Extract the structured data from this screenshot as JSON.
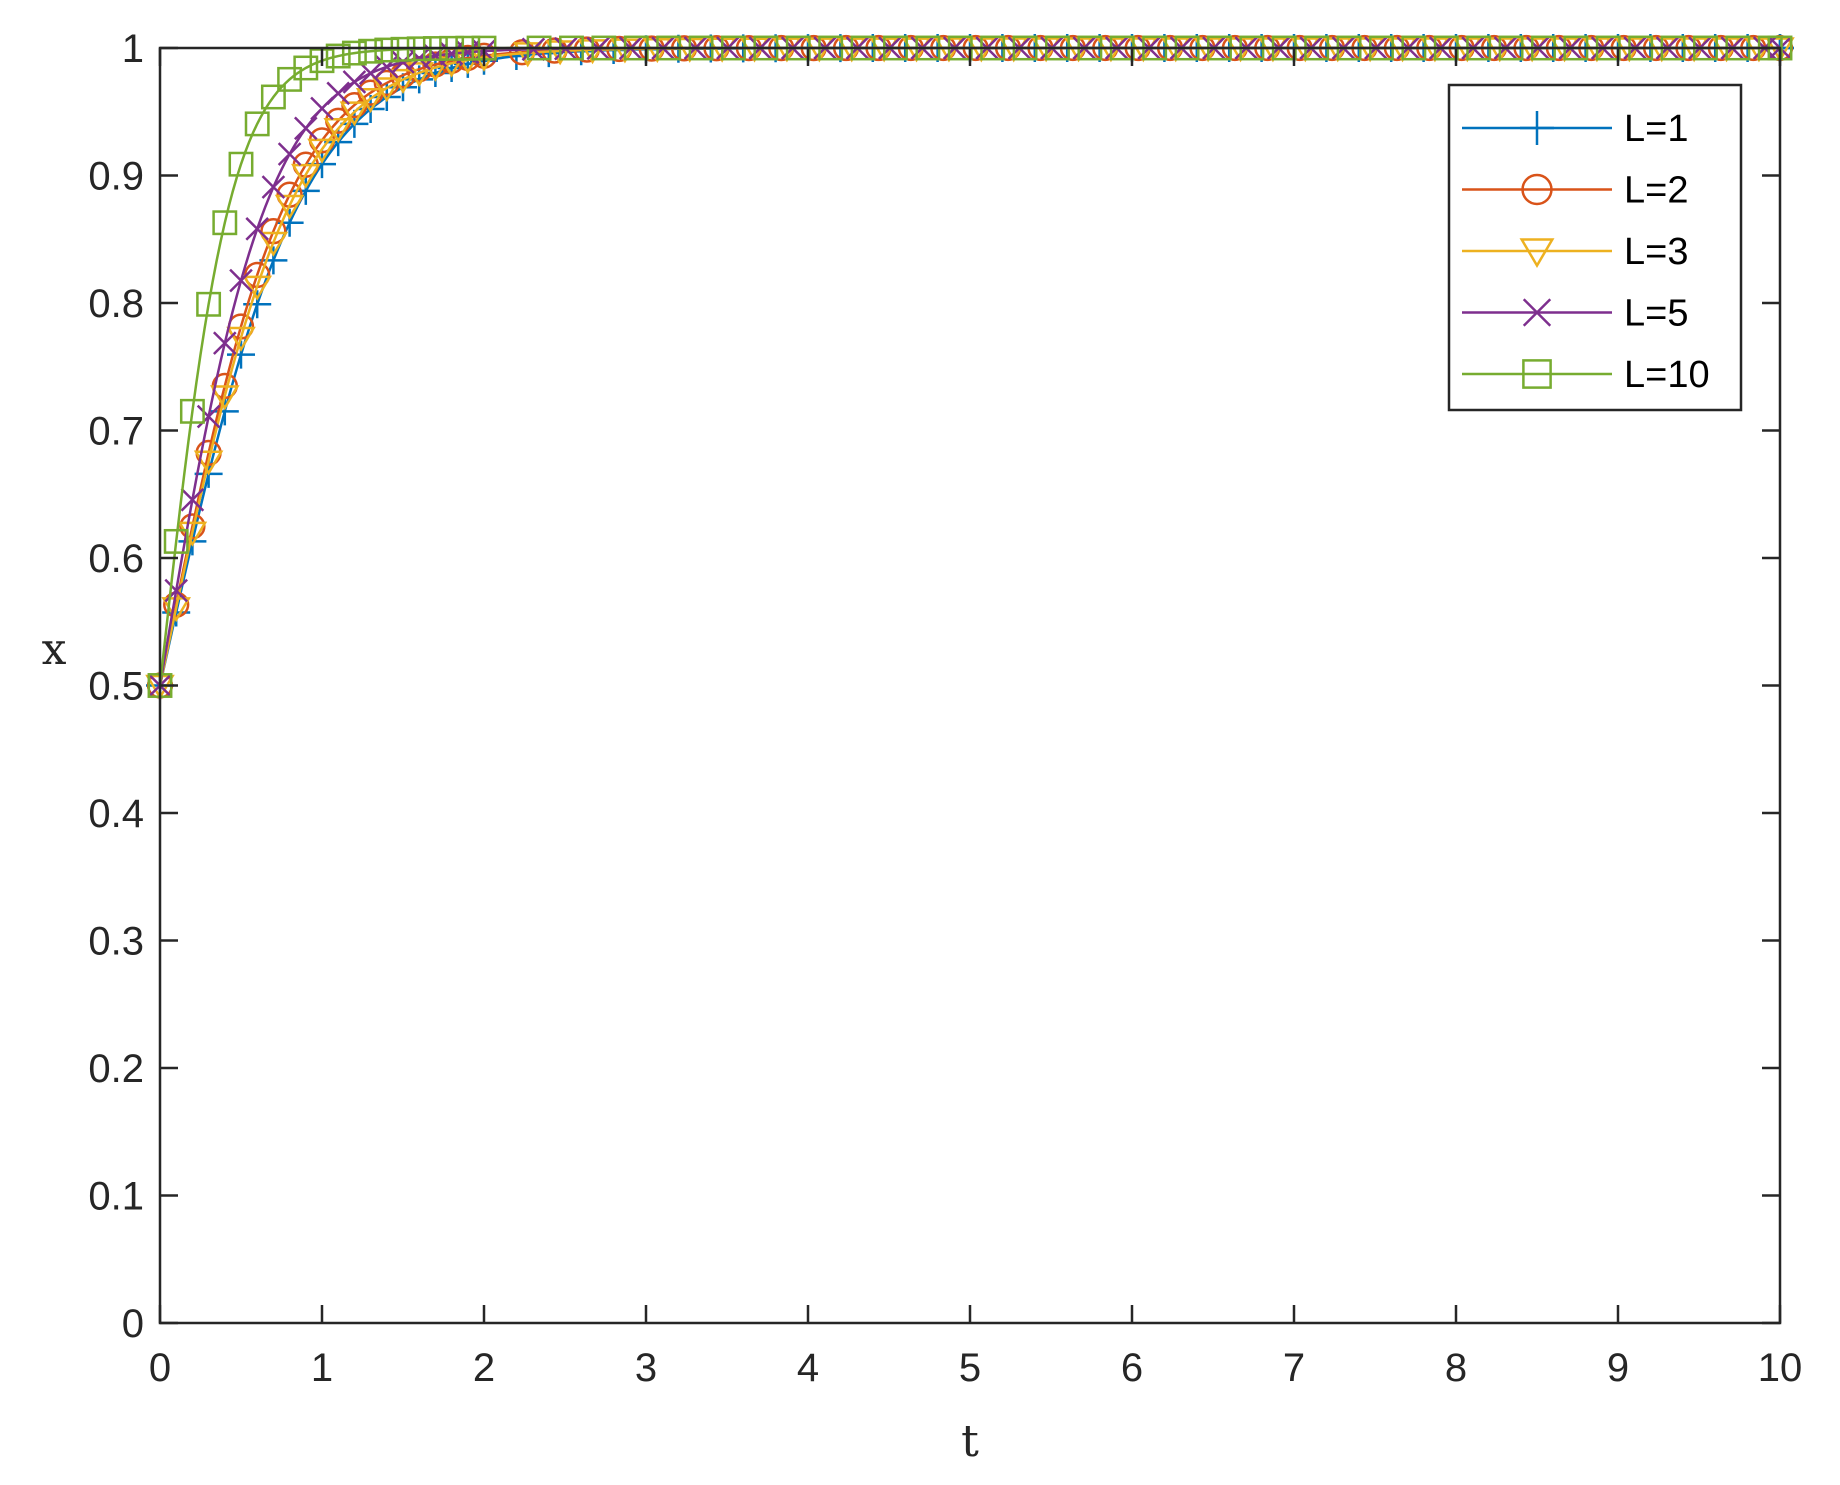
{
  "chart_data": {
    "type": "line",
    "title": "",
    "xlabel": "t",
    "ylabel": "x",
    "xlim": [
      0,
      10
    ],
    "ylim": [
      0,
      1
    ],
    "xticks": [
      "0",
      "1",
      "2",
      "3",
      "4",
      "5",
      "6",
      "7",
      "8",
      "9",
      "10"
    ],
    "yticks": [
      "0",
      "0.1",
      "0.2",
      "0.3",
      "0.4",
      "0.5",
      "0.6",
      "0.7",
      "0.8",
      "0.9",
      "1"
    ],
    "grid": false,
    "legend_position": "top-right",
    "x0": 0.5,
    "series": [
      {
        "name": "L=1",
        "color": "#0072BD",
        "marker": "plus",
        "rate": 2.3
      },
      {
        "name": "L=2",
        "color": "#D95319",
        "marker": "circle",
        "rate": 2.55
      },
      {
        "name": "L=3",
        "color": "#EDB120",
        "marker": "triangle",
        "rate": 2.45
      },
      {
        "name": "L=5",
        "color": "#7E2F8E",
        "marker": "x",
        "rate": 3.0
      },
      {
        "name": "L=10",
        "color": "#77AC30",
        "marker": "square",
        "rate": 4.6
      }
    ],
    "curve_formula": "x(t) = 1 / (1 + ((1 - x0)/x0) * exp(-rate * t))"
  }
}
